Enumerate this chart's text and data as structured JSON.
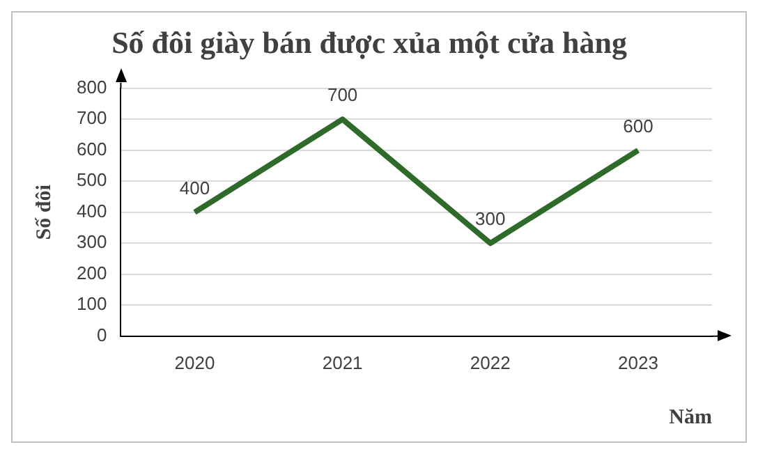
{
  "chart_data": {
    "type": "line",
    "title": "Số đôi giày bán được xủa một cửa hàng",
    "xlabel": "Năm",
    "ylabel": "Số đôi",
    "categories": [
      "2020",
      "2021",
      "2022",
      "2023"
    ],
    "series": [
      {
        "color": "#2e6b2a",
        "values": [
          400,
          700,
          300,
          600
        ]
      }
    ],
    "ylim": [
      0,
      800
    ],
    "yticks": [
      0,
      100,
      200,
      300,
      400,
      500,
      600,
      700,
      800
    ],
    "grid": "y",
    "marker": "none",
    "line_style": "solid",
    "data_labels": true,
    "legend": false
  }
}
